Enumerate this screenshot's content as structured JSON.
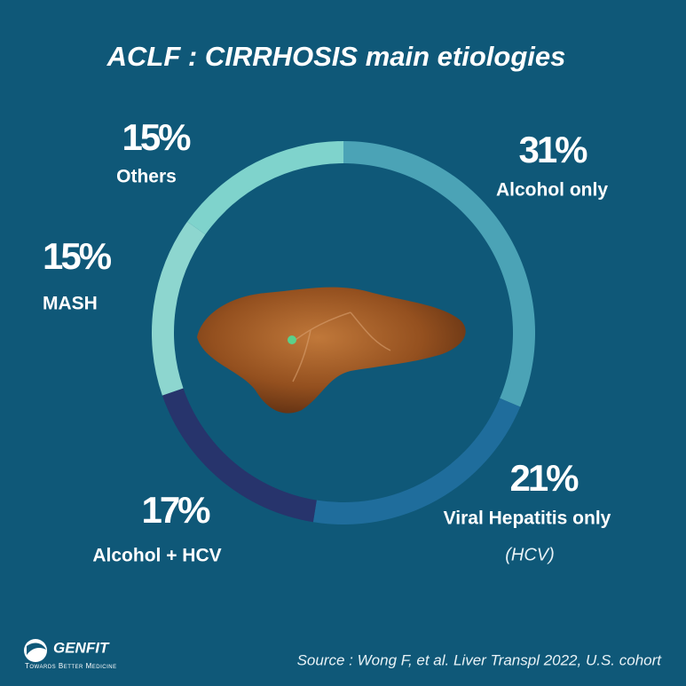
{
  "chart_data": {
    "type": "pie",
    "donut": true,
    "title": "ACLF : CIRRHOSIS main etiologies",
    "categories": [
      "Alcohol only",
      "Viral Hepatitis only",
      "Alcohol + HCV",
      "MASH",
      "Others"
    ],
    "values": [
      31,
      21,
      17,
      15,
      15
    ],
    "value_labels": [
      "31%",
      "21%",
      "17%",
      "15%",
      "15%"
    ],
    "colors": [
      "#4ba3b6",
      "#1f6d9c",
      "#27346c",
      "#8dd6cf",
      "#7fd3cc"
    ],
    "annotation": "(HCV)",
    "source": "Source : Wong F, et al. Liver Transpl 2022, U.S. cohort"
  },
  "logo": {
    "name": "GENFIT",
    "tagline": "Towards Better Medicine"
  }
}
